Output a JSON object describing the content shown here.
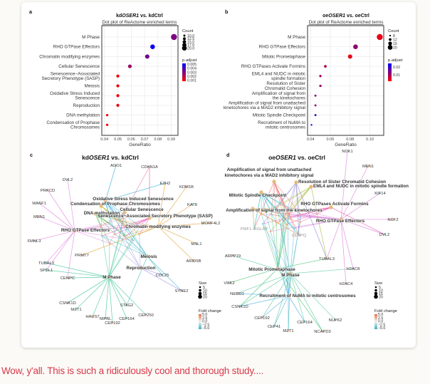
{
  "comment": "Wow, y'all. This is such a ridiculously cool and thorough study....",
  "figure": {
    "panel_a": {
      "letter": "a",
      "title_prefix": "kd",
      "title_gene": "OSER1",
      "title_suffix": " vs. kdCtrl",
      "subtitle": "Dot plot of ReActome enriched terms"
    },
    "panel_b": {
      "letter": "b",
      "title_prefix": "oe",
      "title_gene": "OSER1",
      "title_suffix": " vs. oeCtrl",
      "subtitle": "Dot plot of ReActome enriched terms"
    },
    "panel_c": {
      "letter": "c",
      "title_prefix": "kd",
      "title_gene": "OSER1",
      "title_suffix": " vs. kdCtrl"
    },
    "panel_d": {
      "letter": "d",
      "title_prefix": "oe",
      "title_gene": "OSER1",
      "title_suffix": " vs. oeCtrl"
    }
  },
  "chart_data": [
    {
      "type": "scatter",
      "panel": "a",
      "xlabel": "GeneRatio",
      "xlim": [
        0.038,
        0.095
      ],
      "xticks": [
        0.04,
        0.05,
        0.06,
        0.07,
        0.08,
        0.09
      ],
      "xtick_labels": [
        "0.04",
        "0.05",
        "0.06",
        "0.07",
        "0.08",
        "0.09"
      ],
      "grid": true,
      "categories": [
        "M Phase",
        "RHO GTPase Effectors",
        "Chromatin modifying enzymes",
        "Cellular Senescence",
        "Senescence−Associated\nSecretory Phenotype (SASP)",
        "Meiosis",
        "Oxidative Stress Induced\nSenescence",
        "Reproduction",
        "DNA methylation",
        "Condensation of Prophase\nChromosomes"
      ],
      "gene_ratio": [
        0.092,
        0.076,
        0.072,
        0.059,
        0.05,
        0.05,
        0.05,
        0.05,
        0.042,
        0.042
      ],
      "count": [
        20,
        16,
        15,
        13,
        11,
        11,
        11,
        11,
        9,
        9
      ],
      "p_adjust": [
        0.003,
        0.005,
        0.0032,
        0.0025,
        0.001,
        0.001,
        0.001,
        0.0011,
        0.001,
        0.001
      ],
      "legend": {
        "count_title": "Count",
        "count_values": [
          10,
          12.5,
          15,
          17.5,
          20
        ],
        "count_labels": [
          "10.0",
          "12.5",
          "15.0",
          "17.5",
          "20.0"
        ],
        "color_title": "p.adjust",
        "color_range": [
          0.0008,
          0.0052
        ],
        "color_labels": [
          "0.005",
          "0.004",
          "0.003",
          "0.002",
          "0.001"
        ],
        "color_values": [
          0.005,
          0.004,
          0.003,
          0.002,
          0.001
        ],
        "low_color": "#ff0000",
        "high_color": "#0000ff",
        "placement": "right"
      }
    },
    {
      "type": "scatter",
      "panel": "b",
      "xlabel": "GeneRatio",
      "xlim": [
        0.037,
        0.114
      ],
      "xticks": [
        0.04,
        0.06,
        0.08,
        0.1
      ],
      "xtick_labels": [
        "0.04",
        "0.06",
        "0.08",
        "0.10"
      ],
      "grid": true,
      "categories": [
        "M Phase",
        "RHO GTPase Effectors",
        "Mitotic Prometaphase",
        "RHO GTPases Activate Formins",
        "EML4 and NUDC in mitotic\nspindle formation",
        "Resolution of Sister\nChromatid Cohesion",
        "Amplification of signal from\nthe kinetochores",
        "Amplification of signal from unattached\nkinetochores via a MAD2 inhibitory signal",
        "Mitotic Spindle Checkpoint",
        "Recruitment of NuMA to\nmitotic centrosomes"
      ],
      "gene_ratio": [
        0.11,
        0.0855,
        0.08,
        0.055,
        0.05,
        0.05,
        0.045,
        0.045,
        0.045,
        0.041
      ],
      "count": [
        20,
        16,
        15,
        10,
        9,
        9,
        8,
        8,
        8,
        7
      ],
      "p_adjust": [
        0.004,
        0.012,
        0.004,
        0.009,
        0.01,
        0.011,
        0.012,
        0.012,
        0.02,
        0.025
      ],
      "legend": {
        "count_title": "Count",
        "count_values": [
          8,
          12,
          16,
          20
        ],
        "count_labels": [
          "8",
          "12",
          "16",
          "20"
        ],
        "color_title": "p.adjust",
        "color_range": [
          0.002,
          0.025
        ],
        "color_labels": [
          "0.02",
          "0.01"
        ],
        "color_values": [
          0.02,
          0.01
        ],
        "low_color": "#ff0000",
        "high_color": "#0000ff",
        "placement": "right"
      }
    }
  ],
  "networks": {
    "c": {
      "terms": [
        {
          "label": "Oxidative Stress Induced Senescence",
          "color": "#1fa8e0"
        },
        {
          "label": "Condensation of Prophase Chromosomes",
          "color": "#b8b820"
        },
        {
          "label": "Cellular Senescence",
          "color": "#f07a9a"
        },
        {
          "label": "DNA methylation",
          "color": "#40b040"
        },
        {
          "label": "Senescence−Associated Secretory Phenotype (SASP)",
          "color": "#e848b0"
        },
        {
          "label": "Chromatin modifying enzymes",
          "color": "#e0a030"
        },
        {
          "label": "RHO GTPase Effectors",
          "color": "#e07ae0"
        },
        {
          "label": "Meiosis",
          "color": "#40b8c8"
        },
        {
          "label": "Reproduction",
          "color": "#9a90e8"
        },
        {
          "label": "M Phase",
          "color": "#30c090"
        }
      ],
      "genes": [
        {
          "label": "AGO1",
          "terms": [
            0
          ]
        },
        {
          "label": "CDKN1A",
          "terms": [
            2,
            4
          ]
        },
        {
          "label": "EZH2",
          "terms": [
            0,
            5
          ]
        },
        {
          "label": "KDM1B",
          "terms": [
            5
          ]
        },
        {
          "label": "KAT8",
          "terms": [
            5
          ]
        },
        {
          "label": "MORF4L2",
          "terms": [
            5
          ]
        },
        {
          "label": "MSL1",
          "terms": [
            5
          ]
        },
        {
          "label": "ARID5B",
          "terms": [
            5
          ]
        },
        {
          "label": "CDC25",
          "terms": [
            7,
            8
          ]
        },
        {
          "label": "SYNE2",
          "terms": [
            7,
            8
          ]
        },
        {
          "label": "STAG2",
          "terms": [
            7,
            9
          ]
        },
        {
          "label": "CEP250",
          "terms": [
            9
          ]
        },
        {
          "label": "CEP164",
          "terms": [
            9
          ]
        },
        {
          "label": "CEP192",
          "terms": [
            9
          ]
        },
        {
          "label": "NIPBL",
          "terms": [
            9
          ]
        },
        {
          "label": "HAUS7",
          "terms": [
            9
          ]
        },
        {
          "label": "MZT1",
          "terms": [
            9
          ]
        },
        {
          "label": "CSNK1D",
          "terms": [
            9
          ]
        },
        {
          "label": "SPDL1",
          "terms": [
            6,
            9
          ]
        },
        {
          "label": "CENPC",
          "terms": [
            6,
            9
          ]
        },
        {
          "label": "TUBAL3",
          "terms": [
            6,
            9
          ]
        },
        {
          "label": "PRMT7",
          "terms": [
            5
          ]
        },
        {
          "label": "FMNL3",
          "terms": [
            6
          ]
        },
        {
          "label": "MEN1",
          "terms": [
            6
          ]
        },
        {
          "label": "WASF1",
          "terms": [
            6
          ]
        },
        {
          "label": "PRKCD",
          "terms": [
            6
          ]
        },
        {
          "label": "DVL2",
          "terms": [
            6
          ]
        }
      ]
    },
    "d": {
      "terms": [
        {
          "label": "Amplification  of signal from unattached\nkinetochores via a MAD2  inhibitory signal",
          "color": "#f07070"
        },
        {
          "label": "Resolution of Sister Chromatid Cohesion",
          "color": "#8a80d0"
        },
        {
          "label": "EML4 and NUDC in mitotic spindle formation",
          "color": "#a8b830"
        },
        {
          "label": "Mitotic Spindle Checkpoint",
          "color": "#20b8c8"
        },
        {
          "label": "RHO GTPases Activate Formins",
          "color": "#f050a8"
        },
        {
          "label": "Amplification of signal from the kinetochores",
          "color": "#e0a040"
        },
        {
          "label": "RHO GTPase Effectors",
          "color": "#d878d8"
        },
        {
          "label": "Mitotic Prometaphase",
          "color": "#40c070"
        },
        {
          "label": "M Phase",
          "color": "#58c8a0"
        },
        {
          "label": "Recruitment of NuMA to mitotic centrosomes",
          "color": "#40a8e0"
        }
      ],
      "genes": [
        {
          "label": "NCK1",
          "terms": [
            6
          ]
        },
        {
          "label": "MEN1",
          "terms": [
            6
          ]
        },
        {
          "label": "KIF14",
          "terms": [
            6
          ]
        },
        {
          "label": "NCF2",
          "terms": [
            6
          ]
        },
        {
          "label": "DVL2",
          "terms": [
            4,
            6
          ]
        },
        {
          "label": "TUBAL3",
          "terms": [
            6,
            2,
            1,
            7
          ]
        },
        {
          "label": "H2AC8",
          "terms": [
            6,
            8
          ]
        },
        {
          "label": "H2AC4",
          "terms": [
            6
          ]
        },
        {
          "label": "NUP62",
          "terms": [
            8
          ]
        },
        {
          "label": "NCAPD3",
          "terms": [
            8,
            7
          ]
        },
        {
          "label": "CEP164",
          "terms": [
            8,
            9
          ]
        },
        {
          "label": "MZT1",
          "terms": [
            8,
            9
          ]
        },
        {
          "label": "CEP41",
          "terms": [
            8,
            9
          ]
        },
        {
          "label": "CEP192",
          "terms": [
            8,
            9
          ]
        },
        {
          "label": "CSNK1D",
          "terms": [
            8,
            9,
            7
          ]
        },
        {
          "label": "NEDD1",
          "terms": [
            9,
            8
          ]
        },
        {
          "label": "VRK2",
          "terms": [
            7
          ]
        },
        {
          "label": "ARPP19",
          "terms": [
            8
          ]
        },
        {
          "label": "PMF1−BGLAP",
          "terms": [
            0,
            3,
            5
          ],
          "gray": true
        },
        {
          "label": "CENPQ",
          "terms": [
            0,
            1,
            3,
            5
          ],
          "gray": true
        }
      ]
    },
    "legend": {
      "size_title": "Size",
      "size_labels": [
        "5",
        "10",
        "15",
        "20"
      ],
      "fold_title": "Fold change",
      "fold_labels": [
        "5.0",
        "2.5",
        "0.0",
        "−2.5",
        "−5.0"
      ],
      "fold_high_color": "#e8704a",
      "fold_mid_color": "#f4f4f4",
      "fold_low_color": "#3ab0c0"
    }
  }
}
